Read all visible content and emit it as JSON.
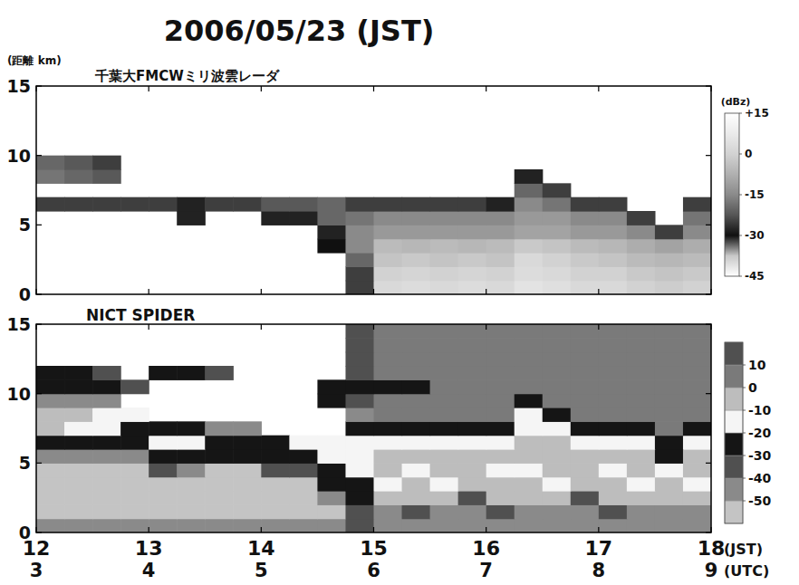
{
  "title": "2006/05/23 (JST)",
  "chart_data": [
    {
      "type": "heatmap",
      "title": "千葉大FMCWミリ波雲レーダ",
      "y_label": "(距離 km)",
      "tick_labels": "y",
      "xlim": [
        12,
        18
      ],
      "xticks": [
        12,
        13,
        14,
        15,
        16,
        17,
        18
      ],
      "ylim": [
        0,
        15
      ],
      "yticks": [
        0,
        5,
        10,
        15
      ],
      "x_bins": [
        12,
        12.25,
        12.5,
        12.75,
        13,
        13.25,
        13.5,
        13.75,
        14,
        14.25,
        14.5,
        14.75,
        15,
        15.25,
        15.5,
        15.75,
        16,
        16.25,
        16.5,
        16.75,
        17,
        17.25,
        17.5,
        17.75,
        18
      ],
      "y_bins": [
        0,
        1,
        2,
        3,
        4,
        5,
        6,
        7,
        8,
        9,
        10,
        11,
        12,
        13,
        14,
        15
      ],
      "z": [
        [
          null,
          null,
          null,
          null,
          null,
          null,
          null,
          null,
          null,
          null,
          null,
          -25,
          2,
          3,
          2,
          3,
          2,
          5,
          4,
          2,
          2,
          0,
          -1,
          0
        ],
        [
          null,
          null,
          null,
          null,
          null,
          null,
          null,
          null,
          null,
          null,
          null,
          -25,
          0,
          1,
          0,
          1,
          0,
          3,
          2,
          0,
          0,
          -2,
          -3,
          -2
        ],
        [
          null,
          null,
          null,
          null,
          null,
          null,
          null,
          null,
          null,
          null,
          null,
          -20,
          -3,
          -2,
          -3,
          -2,
          -3,
          2,
          0,
          -2,
          -3,
          -5,
          -6,
          -5
        ],
        [
          null,
          null,
          null,
          null,
          null,
          null,
          null,
          null,
          null,
          null,
          -30,
          -15,
          -5,
          -6,
          -5,
          -6,
          -5,
          -2,
          -3,
          -5,
          -6,
          -8,
          -10,
          -8
        ],
        [
          null,
          null,
          null,
          null,
          null,
          null,
          null,
          null,
          null,
          null,
          -28,
          -15,
          -12,
          -12,
          -12,
          -12,
          -12,
          -10,
          -10,
          -12,
          -12,
          -15,
          -25,
          -15
        ],
        [
          null,
          null,
          null,
          null,
          null,
          -28,
          null,
          null,
          -28,
          -28,
          -20,
          -18,
          -15,
          -15,
          -15,
          -15,
          -15,
          -12,
          -12,
          -15,
          -15,
          -25,
          null,
          -18
        ],
        [
          -25,
          -25,
          -25,
          -25,
          -25,
          -28,
          -25,
          -25,
          -22,
          -22,
          -20,
          -25,
          -25,
          -25,
          -25,
          -25,
          -28,
          -15,
          -18,
          -25,
          -25,
          null,
          null,
          -25
        ],
        [
          null,
          null,
          null,
          null,
          null,
          null,
          null,
          null,
          null,
          null,
          null,
          null,
          null,
          null,
          null,
          null,
          null,
          -20,
          -25,
          null,
          null,
          null,
          null,
          null
        ],
        [
          -18,
          -20,
          -22,
          null,
          null,
          null,
          null,
          null,
          null,
          null,
          null,
          null,
          null,
          null,
          null,
          null,
          null,
          -28,
          null,
          null,
          null,
          null,
          null,
          null
        ],
        [
          -20,
          -22,
          -25,
          null,
          null,
          null,
          null,
          null,
          null,
          null,
          null,
          null,
          null,
          null,
          null,
          null,
          null,
          null,
          null,
          null,
          null,
          null,
          null,
          null
        ],
        [
          null,
          null,
          null,
          null,
          null,
          null,
          null,
          null,
          null,
          null,
          null,
          null,
          null,
          null,
          null,
          null,
          null,
          null,
          null,
          null,
          null,
          null,
          null,
          null
        ],
        [
          null,
          null,
          null,
          null,
          null,
          null,
          null,
          null,
          null,
          null,
          null,
          null,
          null,
          null,
          null,
          null,
          null,
          null,
          null,
          null,
          null,
          null,
          null,
          null
        ],
        [
          null,
          null,
          null,
          null,
          null,
          null,
          null,
          null,
          null,
          null,
          null,
          null,
          null,
          null,
          null,
          null,
          null,
          null,
          null,
          null,
          null,
          null,
          null,
          null
        ],
        [
          null,
          null,
          null,
          null,
          null,
          null,
          null,
          null,
          null,
          null,
          null,
          null,
          null,
          null,
          null,
          null,
          null,
          null,
          null,
          null,
          null,
          null,
          null,
          null
        ],
        [
          null,
          null,
          null,
          null,
          null,
          null,
          null,
          null,
          null,
          null,
          null,
          null,
          null,
          null,
          null,
          null,
          null,
          null,
          null,
          null,
          null,
          null,
          null,
          null
        ]
      ],
      "colorbar": {
        "type": "gradient",
        "label": "(dBz)",
        "lim": [
          -45,
          15
        ],
        "ticks": [
          {
            "value": 15,
            "label": "+15"
          },
          0,
          -15,
          -30,
          -45
        ],
        "colors": [
          "#ffffff",
          "#c8c8c8",
          "#101010",
          "#555555",
          "#8a8a8a",
          "#b0b0b0",
          "#d2d2d2",
          "#ebebeb",
          "#ffffff"
        ]
      }
    },
    {
      "type": "heatmap",
      "title": "NICT SPIDER",
      "x_label": "(JST)",
      "x2_label": "(UTC)",
      "xlim": [
        12,
        18
      ],
      "xticks": [
        12,
        13,
        14,
        15,
        16,
        17,
        18
      ],
      "x2lim": [
        3,
        9
      ],
      "x2ticks": [
        3,
        4,
        5,
        6,
        7,
        8,
        9
      ],
      "ylim": [
        0,
        15
      ],
      "yticks": [
        0,
        5,
        10,
        15
      ],
      "x_bins": [
        12,
        12.25,
        12.5,
        12.75,
        13,
        13.25,
        13.5,
        13.75,
        14,
        14.25,
        14.5,
        14.75,
        15,
        15.25,
        15.5,
        15.75,
        16,
        16.25,
        16.5,
        16.75,
        17,
        17.25,
        17.5,
        17.75,
        18
      ],
      "y_bins": [
        0,
        1,
        2,
        3,
        4,
        5,
        6,
        7,
        8,
        9,
        10,
        11,
        12,
        13,
        14,
        15
      ],
      "z": [
        [
          -45,
          -45,
          -45,
          -45,
          -45,
          -45,
          -45,
          -45,
          -45,
          -45,
          -45,
          -35,
          -45,
          -45,
          -45,
          -45,
          -45,
          -45,
          -45,
          -45,
          -45,
          -45,
          -45,
          -45
        ],
        [
          -55,
          -55,
          -55,
          -55,
          -55,
          -55,
          -55,
          -55,
          -55,
          -55,
          -55,
          -35,
          -45,
          -35,
          -45,
          -45,
          -35,
          -45,
          -45,
          -45,
          -35,
          -45,
          -45,
          -45
        ],
        [
          -55,
          -55,
          -55,
          -55,
          -55,
          -55,
          -55,
          -55,
          -55,
          -55,
          -45,
          -25,
          -5,
          -5,
          -5,
          -35,
          -5,
          -5,
          -5,
          -35,
          -5,
          -5,
          -5,
          -5
        ],
        [
          -55,
          -55,
          -55,
          -55,
          -55,
          -55,
          -55,
          -55,
          -55,
          -55,
          -25,
          -25,
          -15,
          -5,
          -15,
          -5,
          -5,
          -5,
          -15,
          -5,
          -5,
          -15,
          -5,
          -15
        ],
        [
          -55,
          -55,
          -55,
          -55,
          -35,
          -45,
          -55,
          -55,
          -35,
          -35,
          -25,
          -15,
          -5,
          -15,
          -5,
          -5,
          -15,
          -15,
          -5,
          -5,
          -15,
          -5,
          -15,
          -5
        ],
        [
          -45,
          -45,
          -45,
          -45,
          -25,
          -25,
          -25,
          -25,
          -25,
          -25,
          -15,
          -15,
          -5,
          -5,
          -5,
          -5,
          -5,
          -5,
          -5,
          -5,
          -5,
          -5,
          -25,
          -5
        ],
        [
          -25,
          -25,
          -25,
          -25,
          -15,
          -15,
          -25,
          -25,
          -25,
          -15,
          -15,
          -15,
          -15,
          -15,
          -15,
          -15,
          -15,
          -5,
          -5,
          -15,
          -15,
          -15,
          -25,
          -15
        ],
        [
          -5,
          -15,
          -15,
          -25,
          -25,
          -25,
          -45,
          -45,
          null,
          null,
          null,
          -25,
          -25,
          -25,
          -25,
          -25,
          -25,
          -15,
          -15,
          -25,
          -25,
          -25,
          5,
          -25
        ],
        [
          -5,
          -5,
          -15,
          -15,
          null,
          null,
          null,
          null,
          null,
          null,
          null,
          -45,
          5,
          5,
          5,
          5,
          5,
          -15,
          -25,
          5,
          5,
          5,
          5,
          5
        ],
        [
          -45,
          -45,
          -45,
          null,
          null,
          null,
          null,
          null,
          null,
          null,
          -25,
          -35,
          5,
          5,
          5,
          5,
          5,
          -25,
          5,
          5,
          5,
          5,
          5,
          5
        ],
        [
          -25,
          -25,
          -25,
          -35,
          null,
          null,
          null,
          null,
          null,
          null,
          -25,
          -25,
          -25,
          -25,
          5,
          5,
          5,
          5,
          5,
          5,
          5,
          5,
          5,
          5
        ],
        [
          -25,
          -25,
          -35,
          null,
          -25,
          -25,
          -35,
          null,
          null,
          null,
          null,
          -35,
          5,
          5,
          5,
          5,
          5,
          5,
          5,
          5,
          5,
          5,
          5,
          5
        ],
        [
          null,
          null,
          null,
          null,
          null,
          null,
          null,
          null,
          null,
          null,
          null,
          -35,
          5,
          5,
          5,
          5,
          5,
          5,
          5,
          5,
          5,
          5,
          5,
          5
        ],
        [
          null,
          null,
          null,
          null,
          null,
          null,
          null,
          null,
          null,
          null,
          null,
          -35,
          5,
          5,
          5,
          5,
          5,
          5,
          5,
          5,
          5,
          5,
          5,
          5
        ],
        [
          null,
          null,
          null,
          null,
          null,
          null,
          null,
          null,
          null,
          null,
          null,
          -35,
          5,
          5,
          5,
          5,
          5,
          5,
          5,
          5,
          5,
          5,
          5,
          5
        ]
      ],
      "colorbar": {
        "type": "bands",
        "lim": [
          -60,
          20
        ],
        "ticks": [
          10,
          0,
          -10,
          -20,
          -30,
          -40,
          -50
        ],
        "colors": [
          "#c4c4c4",
          "#8a8a8a",
          "#505050",
          "#151515",
          "#f5f5f5",
          "#bdbdbd",
          "#7a7a7a",
          "#505050"
        ]
      }
    }
  ]
}
